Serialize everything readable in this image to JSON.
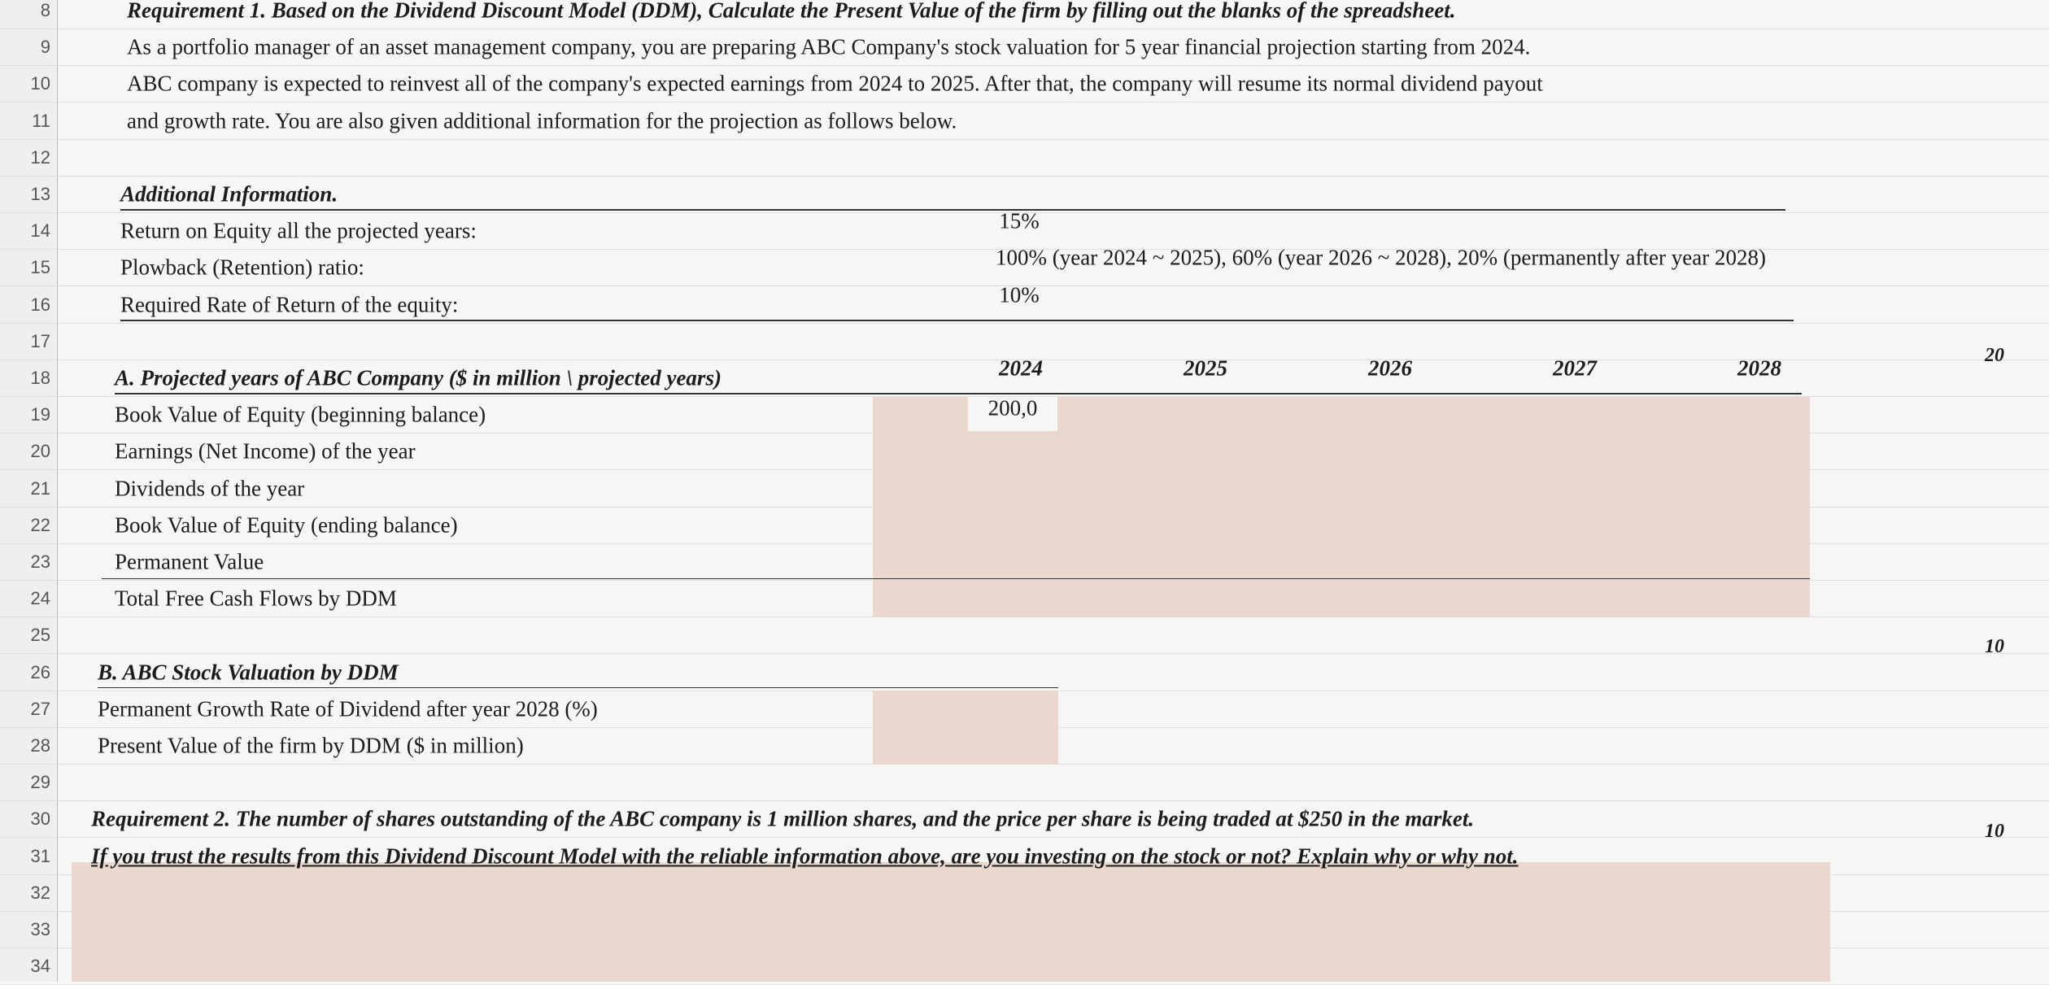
{
  "row_headers": [
    "8",
    "9",
    "10",
    "11",
    "12",
    "13",
    "14",
    "15",
    "16",
    "17",
    "18",
    "19",
    "20",
    "21",
    "22",
    "23",
    "24",
    "25",
    "26",
    "27",
    "28",
    "29",
    "30",
    "31",
    "32",
    "33",
    "34"
  ],
  "requirement_1": {
    "title": "Requirement 1. Based on the Dividend Discount Model (DDM), Calculate the Present Value of the firm by filling out the blanks of the spreadsheet.",
    "lines": [
      "As a portfolio manager of an asset management company, you are preparing ABC Company's stock valuation for 5 year financial projection starting from 2024.",
      "ABC company is expected to reinvest all of the company's expected earnings from 2024 to 2025. After that, the company will resume its normal dividend payout",
      "and growth rate. You are also given additional information for the projection as follows below."
    ]
  },
  "additional_information": {
    "heading": "Additional Information.",
    "rows": [
      {
        "label": "Return on Equity all the projected years:",
        "value": "15%"
      },
      {
        "label": "Plowback (Retention) ratio:",
        "value": "100% (year 2024 ~ 2025), 60% (year 2026 ~ 2028), 20% (permanently after year 2028)"
      },
      {
        "label": "Required Rate of Return of the equity:",
        "value": "10%"
      }
    ]
  },
  "section_a": {
    "heading": "A. Projected years of ABC Company ($ in million \\ projected years)",
    "years": [
      "2024",
      "2025",
      "2026",
      "2027",
      "2028"
    ],
    "rows": [
      "Book Value of Equity (beginning balance)",
      "Earnings (Net Income) of the year",
      "Dividends of the year",
      "Book Value of Equity (ending balance)",
      "Permanent Value",
      "Total Free Cash Flows by DDM"
    ],
    "book_value_2024": "200,0"
  },
  "section_b": {
    "heading": "B. ABC Stock Valuation by DDM",
    "rows": [
      "Permanent Growth Rate of Dividend after year 2028 (%)",
      "Present Value of the firm by DDM ($ in million)"
    ]
  },
  "requirement_2": {
    "lines": [
      "Requirement 2. The number of shares outstanding of the ABC company is 1 million shares, and the price per share is being traded at $250 in the market.",
      "If you trust the results from this Dividend Discount Model with the reliable information above, are you investing on the stock or not? Explain why or why not."
    ]
  },
  "points": [
    "20",
    "10",
    "10"
  ]
}
